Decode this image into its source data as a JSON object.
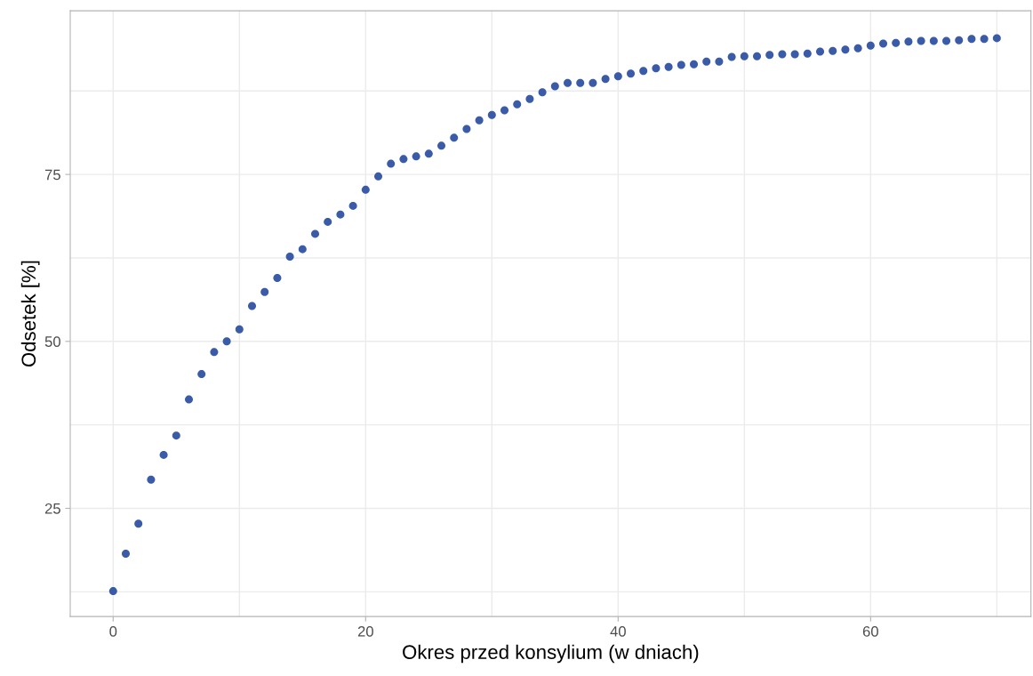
{
  "chart_data": {
    "type": "scatter",
    "xlabel": "Okres przed konsylium (w dniach)",
    "ylabel": "Odsetek [%]",
    "x": [
      0,
      1,
      2,
      3,
      4,
      5,
      6,
      7,
      8,
      9,
      10,
      11,
      12,
      13,
      14,
      15,
      16,
      17,
      18,
      19,
      20,
      21,
      22,
      23,
      24,
      25,
      26,
      27,
      28,
      29,
      30,
      31,
      32,
      33,
      34,
      35,
      36,
      37,
      38,
      39,
      40,
      41,
      42,
      43,
      44,
      45,
      46,
      47,
      48,
      49,
      50,
      51,
      52,
      53,
      54,
      55,
      56,
      57,
      58,
      59,
      60,
      61,
      62,
      63,
      64,
      65,
      66,
      67,
      68,
      69,
      70
    ],
    "series": [
      {
        "color": "#3a5ba8",
        "values": [
          12.6,
          18.2,
          22.7,
          29.3,
          33.0,
          35.9,
          41.3,
          45.1,
          48.4,
          50.0,
          51.8,
          55.3,
          57.4,
          59.5,
          62.7,
          63.8,
          66.1,
          67.9,
          69.0,
          70.3,
          72.7,
          74.7,
          76.6,
          77.3,
          77.7,
          78.1,
          79.3,
          80.5,
          81.8,
          83.1,
          83.9,
          84.6,
          85.5,
          86.3,
          87.3,
          88.2,
          88.7,
          88.7,
          88.7,
          89.3,
          89.7,
          90.1,
          90.5,
          90.9,
          91.1,
          91.4,
          91.5,
          91.9,
          91.9,
          92.6,
          92.7,
          92.7,
          92.9,
          93.0,
          93.0,
          93.1,
          93.4,
          93.5,
          93.7,
          93.9,
          94.3,
          94.6,
          94.7,
          94.9,
          95.0,
          95.0,
          95.0,
          95.1,
          95.3,
          95.3,
          95.4
        ]
      }
    ],
    "xlim": [
      -3.4,
      72.7
    ],
    "ylim": [
      8.8,
      99.5
    ],
    "xticks": [
      0,
      {
        "value": 10,
        "label": null
      },
      20,
      {
        "value": 30,
        "label": null
      },
      40,
      {
        "value": 50,
        "label": null
      },
      60,
      {
        "value": 70,
        "label": null
      }
    ],
    "yticks": [
      {
        "value": 12.5,
        "label": null
      },
      25,
      {
        "value": 37.5,
        "label": null
      },
      50,
      {
        "value": 62.5,
        "label": null
      },
      75,
      {
        "value": 87.5,
        "label": null
      }
    ],
    "grid": true,
    "marker": "circle"
  }
}
